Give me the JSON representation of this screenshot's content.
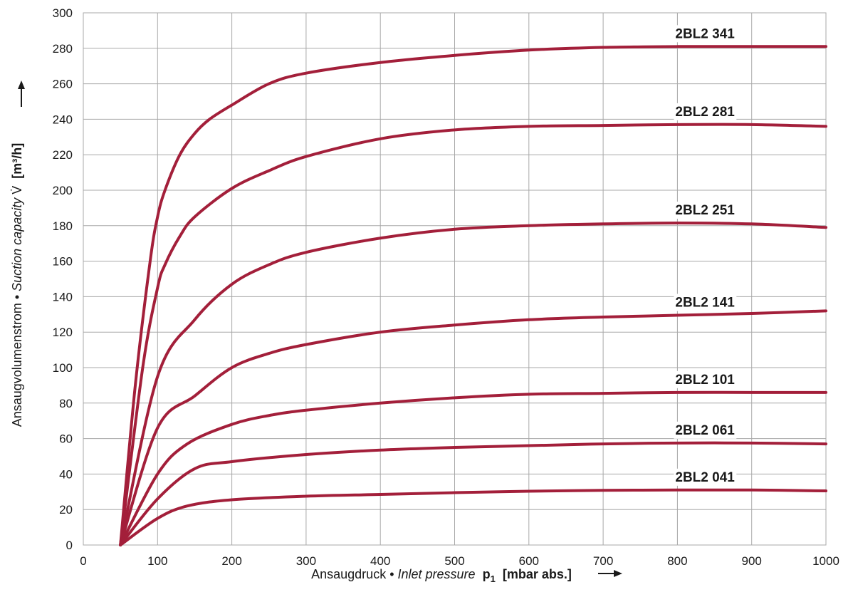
{
  "chart_data": {
    "type": "line",
    "xlabel": {
      "prefix": "Ansaugdruck • ",
      "italic": "Inlet pressure",
      "symbol": "p",
      "subscript": "1",
      "unit": "[mbar abs.]"
    },
    "ylabel": {
      "prefix": "Ansaugvolumenstrom • ",
      "italic": "Suction capacity",
      "symbol": "V̇",
      "unit": "[m³/h]"
    },
    "xlim": [
      0,
      1000
    ],
    "ylim": [
      0,
      300
    ],
    "xticks": [
      0,
      100,
      200,
      300,
      400,
      500,
      600,
      700,
      800,
      900,
      1000
    ],
    "yticks": [
      0,
      20,
      40,
      60,
      80,
      100,
      120,
      140,
      160,
      180,
      200,
      220,
      240,
      260,
      280,
      300
    ],
    "grid": true,
    "line_color": "#a31f3a",
    "series": [
      {
        "name": "2BL2 341",
        "x": [
          50,
          70,
          90,
          100,
          110,
          130,
          150,
          170,
          200,
          250,
          300,
          400,
          500,
          600,
          700,
          800,
          900,
          1000
        ],
        "y": [
          0,
          90,
          160,
          185,
          200,
          220,
          232,
          240,
          248,
          260,
          266,
          272,
          276,
          279,
          280.5,
          281,
          281,
          281
        ]
      },
      {
        "name": "2BL2 281",
        "x": [
          50,
          80,
          100,
          110,
          130,
          150,
          200,
          250,
          300,
          400,
          500,
          600,
          700,
          800,
          900,
          1000
        ],
        "y": [
          0,
          100,
          145,
          158,
          174,
          185,
          201,
          211,
          219,
          229,
          234,
          236,
          236.5,
          237,
          237,
          236
        ]
      },
      {
        "name": "2BL2 251",
        "x": [
          50,
          100,
          150,
          200,
          250,
          300,
          400,
          500,
          600,
          700,
          800,
          900,
          1000
        ],
        "y": [
          0,
          95,
          127,
          147,
          158,
          165,
          173,
          178,
          180,
          181,
          181.5,
          181,
          179
        ]
      },
      {
        "name": "2BL2 141",
        "x": [
          50,
          100,
          150,
          200,
          250,
          300,
          400,
          500,
          600,
          700,
          800,
          900,
          1000
        ],
        "y": [
          0,
          66,
          84,
          100,
          108,
          113,
          120,
          124,
          127,
          128.5,
          129.5,
          130.5,
          132
        ]
      },
      {
        "name": "2BL2 101",
        "x": [
          50,
          100,
          140,
          200,
          250,
          300,
          400,
          500,
          600,
          700,
          800,
          900,
          1000
        ],
        "y": [
          0,
          40,
          57,
          68,
          73,
          76,
          80,
          83,
          85,
          85.5,
          86,
          86,
          86
        ]
      },
      {
        "name": "2BL2 061",
        "x": [
          50,
          100,
          150,
          200,
          300,
          400,
          500,
          600,
          700,
          800,
          900,
          1000
        ],
        "y": [
          0,
          26,
          43,
          47,
          51,
          53.5,
          55,
          56,
          57,
          57.5,
          57.5,
          57
        ]
      },
      {
        "name": "2BL2 041",
        "x": [
          50,
          100,
          140,
          200,
          300,
          400,
          500,
          600,
          700,
          800,
          900,
          1000
        ],
        "y": [
          0,
          15,
          22,
          25.5,
          27.5,
          28.5,
          29.5,
          30.3,
          30.8,
          31,
          31,
          30.5
        ]
      }
    ]
  }
}
